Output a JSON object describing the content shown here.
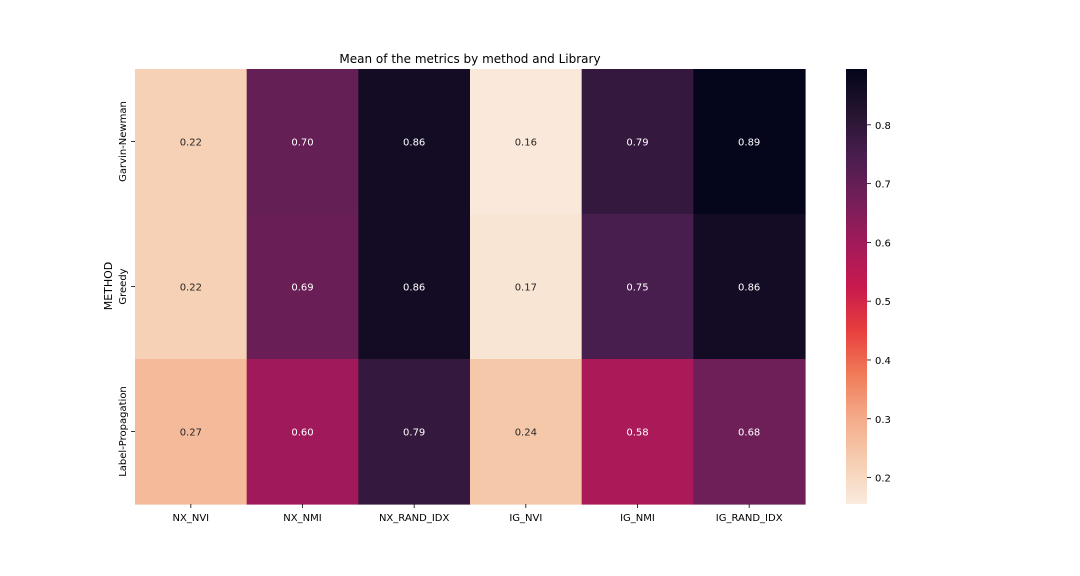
{
  "chart_data": {
    "type": "heatmap",
    "title": "Mean of the metrics by method and Library",
    "ylabel": "METHOD",
    "xlabel": "",
    "x_categories": [
      "NX_NVI",
      "NX_NMI",
      "NX_RAND_IDX",
      "IG_NVI",
      "IG_NMI",
      "IG_RAND_IDX"
    ],
    "y_categories": [
      "Garvin-Newman",
      "Greedy",
      "Label-Propagation"
    ],
    "values": [
      [
        0.22,
        0.7,
        0.86,
        0.16,
        0.79,
        0.89
      ],
      [
        0.22,
        0.69,
        0.86,
        0.17,
        0.75,
        0.86
      ],
      [
        0.27,
        0.6,
        0.79,
        0.24,
        0.58,
        0.68
      ]
    ],
    "value_labels": [
      [
        "0.22",
        "0.70",
        "0.86",
        "0.16",
        "0.79",
        "0.89"
      ],
      [
        "0.22",
        "0.69",
        "0.86",
        "0.17",
        "0.75",
        "0.86"
      ],
      [
        "0.27",
        "0.60",
        "0.79",
        "0.24",
        "0.58",
        "0.68"
      ]
    ],
    "colorbar": {
      "range": [
        0.155,
        0.895
      ],
      "ticks": [
        0.2,
        0.3,
        0.4,
        0.5,
        0.6,
        0.7,
        0.8
      ],
      "tick_labels": [
        "0.2",
        "0.3",
        "0.4",
        "0.5",
        "0.6",
        "0.7",
        "0.8"
      ],
      "colormap": "rocket_r",
      "position": "right"
    }
  }
}
